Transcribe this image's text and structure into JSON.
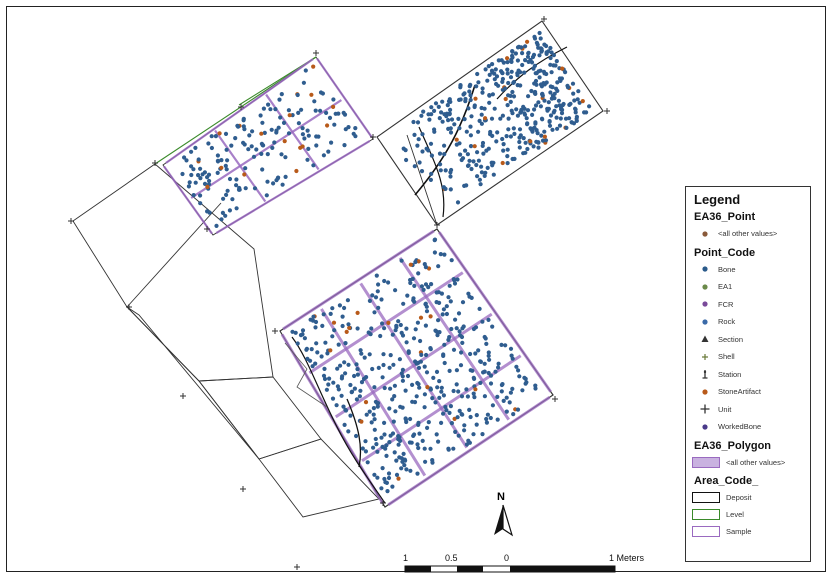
{
  "legend": {
    "title": "Legend",
    "point_layer": "EA36_Point",
    "point_other": "<all other values>",
    "point_code_field": "Point_Code",
    "point_codes": [
      {
        "label": "Bone",
        "icon": "dot-icon",
        "color": "#2a5a8a"
      },
      {
        "label": "EA1",
        "icon": "dot-icon",
        "color": "#6b8a4a"
      },
      {
        "label": "FCR",
        "icon": "dot-icon",
        "color": "#7a4a9a"
      },
      {
        "label": "Rock",
        "icon": "dot-icon",
        "color": "#3a6aa8"
      },
      {
        "label": "Section",
        "icon": "triangle-icon",
        "color": "#333333"
      },
      {
        "label": "Shell",
        "icon": "cross-small-icon",
        "color": "#6a7a3a"
      },
      {
        "label": "Station",
        "icon": "station-icon",
        "color": "#333333"
      },
      {
        "label": "StoneArtifact",
        "icon": "dot-icon",
        "color": "#b85a1a"
      },
      {
        "label": "Unit",
        "icon": "plus-icon",
        "color": "#333333"
      },
      {
        "label": "WorkedBone",
        "icon": "dot-icon",
        "color": "#4a3a8a"
      }
    ],
    "polygon_layer": "EA36_Polygon",
    "polygon_other": "<all other values>",
    "area_code_field": "Area_Code_",
    "area_codes": [
      {
        "label": "Deposit",
        "color": "#111111"
      },
      {
        "label": "Level",
        "color": "#3a8a2a"
      },
      {
        "label": "Sample",
        "color": "#9a6ac0"
      }
    ]
  },
  "north_arrow": {
    "label": "N"
  },
  "scale_bar": {
    "labels": [
      "1",
      "0.5",
      "0",
      "1 Meters"
    ]
  },
  "colors": {
    "artifact_dot": "#2f5d8f",
    "stone_artifact": "#b85a1a",
    "unit_outline": "#333333",
    "sample_outline": "#9a6ac0",
    "level_line": "#3a8a2a"
  }
}
